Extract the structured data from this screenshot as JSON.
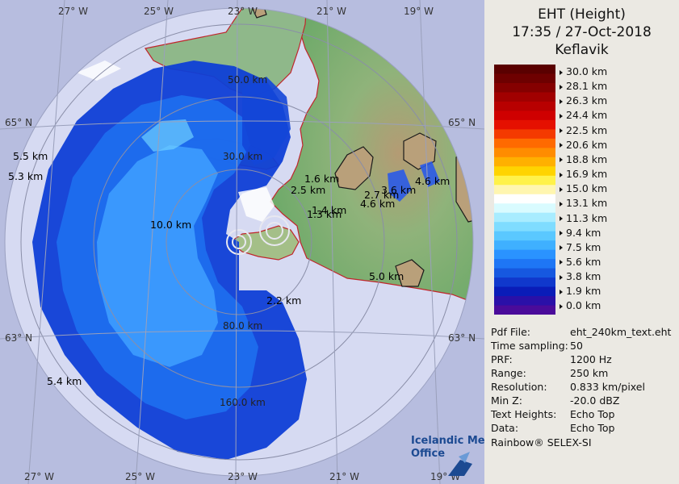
{
  "title": {
    "line1": "EHT (Height)",
    "line2": "17:35 / 27-Oct-2018",
    "line3": "Keflavik"
  },
  "legend": {
    "labels": [
      "30.0 km",
      "28.1 km",
      "26.3 km",
      "24.4 km",
      "22.5 km",
      "20.6 km",
      "18.8 km",
      "16.9 km",
      "15.0 km",
      "13.1 km",
      "11.3 km",
      "9.4 km",
      "7.5 km",
      "5.6 km",
      "3.8 km",
      "1.9 km",
      "0.0 km"
    ],
    "colors": [
      "#5a0000",
      "#6e0000",
      "#850000",
      "#a10000",
      "#b80000",
      "#cf0000",
      "#e51000",
      "#f43a00",
      "#ff6a00",
      "#ff8c00",
      "#ffb000",
      "#ffd400",
      "#fff24a",
      "#fff6b0",
      "#ffffff",
      "#d9fbff",
      "#a8ecff",
      "#7fdcff",
      "#5ac8ff",
      "#3fb0ff",
      "#2a93ff",
      "#1e76f5",
      "#1658e0",
      "#1038cc",
      "#0a1cb8",
      "#2a10a8",
      "#4a0b9a"
    ]
  },
  "info": [
    {
      "key": "Pdf File:",
      "value": "eht_240km_text.eht"
    },
    {
      "key": "Time sampling:",
      "value": "50"
    },
    {
      "key": "PRF:",
      "value": "1200 Hz"
    },
    {
      "key": "Range:",
      "value": "250 km"
    },
    {
      "key": "Resolution:",
      "value": "0.833 km/pixel"
    },
    {
      "key": "Min Z:",
      "value": "-20.0 dBZ"
    },
    {
      "key": "Text Heights:",
      "value": "Echo Top"
    },
    {
      "key": "Data:",
      "value": "Echo Top"
    }
  ],
  "footer": "Rainbow® SELEX-SI",
  "logo": {
    "line1": "Icelandic Met",
    "line2": "Office"
  },
  "map": {
    "lon_labels_top": [
      "27° W",
      "25° W",
      "23° W",
      "21° W",
      "19° W"
    ],
    "lon_labels_bottom": [
      "27° W",
      "25° W",
      "23° W",
      "21° W",
      "19° W"
    ],
    "lat_labels_left": [
      "65° N",
      "63° N"
    ],
    "lat_labels_right": [
      "65° N",
      "63° N"
    ],
    "range_labels": [
      "50.0 km",
      "30.0 km",
      "80.0 km",
      "160.0 km"
    ],
    "echo_heights": [
      "5.5 km",
      "5.3 km",
      "10.0 km",
      "1.6 km",
      "2.5 km",
      "1.4 km",
      "1.3 km",
      "2.7 km",
      "3.6 km",
      "4.6 km",
      "4.6 km",
      "5.0 km",
      "2.2 km",
      "5.4 km"
    ]
  }
}
